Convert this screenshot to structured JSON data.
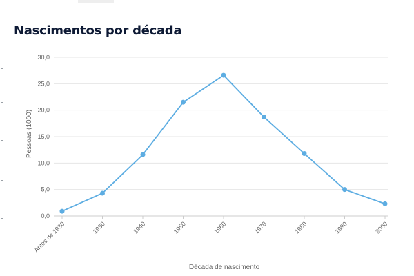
{
  "chart_data": {
    "type": "line",
    "title": "Nascimentos por década",
    "xlabel": "Década de nascimento",
    "ylabel": "Pessoas (1000)",
    "categories": [
      "Antes de 1930",
      "1930",
      "1940",
      "1950",
      "1960",
      "1970",
      "1980",
      "1990",
      "2000"
    ],
    "series": [
      {
        "values": [
          0.9,
          4.3,
          11.6,
          21.5,
          26.6,
          18.7,
          11.8,
          5.0,
          2.3
        ]
      }
    ],
    "ylim": [
      0,
      30
    ],
    "yticks": [
      "0,0",
      "5,0",
      "10,0",
      "15,0",
      "20,0",
      "25,0",
      "30,0"
    ],
    "grid": true,
    "legend": "none",
    "colors": {
      "line": "#5dade2",
      "title": "#0e1a35",
      "grid": "#e6e6e6",
      "text": "#666666"
    }
  }
}
